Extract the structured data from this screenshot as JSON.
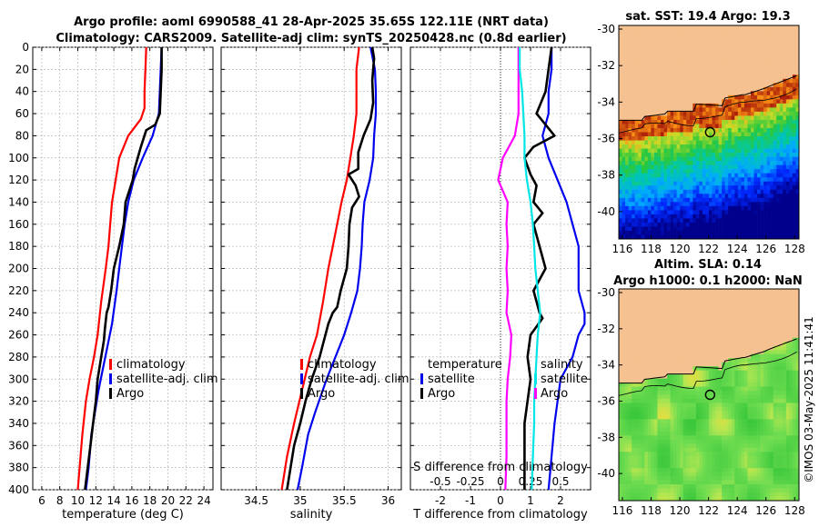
{
  "titles": {
    "line1": "Argo profile: aoml 6990588_41 28-Apr-2025 35.65S 122.11E (NRT data)",
    "line2": "Climatology: CARS2009. Satellite-adj clim: synTS_20250428.nc (0.8d earlier)"
  },
  "credit": "©IMOS 03-May-2025 11:41:41",
  "colors": {
    "climatology": "#ff0000",
    "satellite": "#0000ee",
    "argo": "#000000",
    "salinity_satellite": "#ff00ff",
    "salinity_argo": "#00e5e5"
  },
  "maps": [
    {
      "title_lines": [
        "sat. SST: 19.4 Argo: 19.3"
      ],
      "palette": "sst",
      "x_ticks": [
        "116",
        "118",
        "120",
        "122",
        "124",
        "126",
        "128"
      ],
      "y_ticks": [
        "-30",
        "-32",
        "-34",
        "-36",
        "-38",
        "-40"
      ]
    },
    {
      "title_lines": [
        "Altim. SLA: 0.14",
        "Argo h1000: 0.1 h2000: NaN"
      ],
      "palette": "sla",
      "x_ticks": [
        "116",
        "118",
        "120",
        "122",
        "124",
        "126",
        "128"
      ],
      "y_ticks": [
        "-30",
        "-32",
        "-34",
        "-36",
        "-38",
        "-40"
      ]
    }
  ],
  "chart_data": [
    {
      "type": "line",
      "name": "temperature",
      "xlabel": "temperature (deg C)",
      "ylabel": "",
      "xlim": [
        5,
        25
      ],
      "ylim": [
        400,
        0
      ],
      "x_ticks": [
        6,
        8,
        10,
        12,
        14,
        16,
        18,
        20,
        22,
        24
      ],
      "y_ticks": [
        0,
        20,
        40,
        60,
        80,
        100,
        120,
        140,
        160,
        180,
        200,
        220,
        240,
        260,
        280,
        300,
        320,
        340,
        360,
        380,
        400
      ],
      "legend": [
        "climatology",
        "satellite-adj. clim",
        "Argo"
      ],
      "series": [
        {
          "name": "climatology",
          "color_key": "climatology",
          "x": [
            17.6,
            17.5,
            17.4,
            17.4,
            17.0,
            15.6,
            14.6,
            14.2,
            13.8,
            13.6,
            13.4,
            13.1,
            12.6,
            12.2,
            11.8,
            11.3,
            10.9,
            10.5,
            10.2,
            10.0
          ],
          "y": [
            0,
            20,
            40,
            55,
            65,
            80,
            100,
            120,
            140,
            160,
            180,
            200,
            230,
            260,
            280,
            300,
            320,
            350,
            380,
            400
          ]
        },
        {
          "name": "satellite-adj. clim",
          "color_key": "satellite",
          "x": [
            19.3,
            19.2,
            19.1,
            19.0,
            18.3,
            17.2,
            16.2,
            15.6,
            15.2,
            14.9,
            14.6,
            14.3,
            13.8,
            13.3,
            12.8,
            12.3,
            11.9,
            11.5,
            11.2,
            10.9
          ],
          "y": [
            0,
            20,
            40,
            60,
            80,
            100,
            120,
            140,
            160,
            180,
            200,
            220,
            250,
            270,
            290,
            310,
            330,
            350,
            380,
            400
          ]
        },
        {
          "name": "Argo",
          "color_key": "argo",
          "x": [
            19.3,
            19.3,
            19.2,
            19.1,
            18.6,
            17.6,
            17.0,
            16.3,
            16.1,
            15.3,
            15.1,
            14.6,
            14.0,
            13.7,
            13.4,
            13.2,
            13.0,
            12.9,
            12.6,
            12.2,
            12.0,
            11.7,
            11.4,
            11.1,
            10.8
          ],
          "y": [
            0,
            20,
            40,
            60,
            70,
            75,
            90,
            110,
            120,
            140,
            160,
            180,
            200,
            220,
            235,
            240,
            255,
            265,
            280,
            300,
            320,
            340,
            360,
            380,
            400
          ]
        }
      ]
    },
    {
      "type": "line",
      "name": "salinity",
      "xlabel": "salinity",
      "ylabel": "",
      "xlim": [
        34.1,
        36.15
      ],
      "ylim": [
        400,
        0
      ],
      "x_ticks": [
        34.5,
        35,
        35.5,
        36
      ],
      "legend": [
        "climatology",
        "satellite-adj. clim",
        "Argo"
      ],
      "series": [
        {
          "name": "climatology",
          "color_key": "climatology",
          "x": [
            35.67,
            35.64,
            35.64,
            35.64,
            35.61,
            35.57,
            35.53,
            35.47,
            35.42,
            35.37,
            35.32,
            35.26,
            35.19,
            35.11,
            35.05,
            34.99,
            34.93,
            34.85,
            34.79
          ],
          "y": [
            0,
            20,
            40,
            60,
            80,
            100,
            120,
            140,
            160,
            180,
            200,
            230,
            260,
            280,
            300,
            320,
            340,
            370,
            400
          ]
        },
        {
          "name": "satellite-adj. clim",
          "color_key": "satellite",
          "x": [
            35.8,
            35.85,
            35.86,
            35.86,
            35.84,
            35.83,
            35.79,
            35.73,
            35.71,
            35.7,
            35.68,
            35.65,
            35.58,
            35.5,
            35.4,
            35.3,
            35.17,
            35.09,
            35.02,
            34.97
          ],
          "y": [
            0,
            20,
            40,
            60,
            80,
            100,
            120,
            140,
            160,
            180,
            200,
            220,
            240,
            260,
            280,
            300,
            330,
            350,
            380,
            400
          ]
        },
        {
          "name": "Argo",
          "color_key": "argo",
          "x": [
            35.82,
            35.84,
            35.82,
            35.83,
            35.81,
            35.8,
            35.72,
            35.66,
            35.66,
            35.55,
            35.63,
            35.67,
            35.59,
            35.56,
            35.55,
            35.53,
            35.46,
            35.42,
            35.37,
            35.32,
            35.22,
            35.13,
            35.06,
            35.0,
            34.93,
            34.89,
            34.85
          ],
          "y": [
            0,
            10,
            30,
            50,
            60,
            65,
            80,
            95,
            110,
            115,
            125,
            135,
            145,
            160,
            180,
            200,
            220,
            235,
            240,
            250,
            280,
            300,
            320,
            340,
            360,
            380,
            400
          ]
        }
      ]
    },
    {
      "type": "line",
      "name": "differences",
      "xlabel": "T difference from climatology",
      "xlabel_top": "S difference from climatology",
      "xlim": [
        -3,
        3
      ],
      "ylim": [
        400,
        0
      ],
      "x_ticks": [
        -2,
        -1,
        0,
        1,
        2
      ],
      "x_tick_labels": [
        "-2",
        "-1",
        "0",
        "1",
        "2"
      ],
      "s_ticks": [
        -0.5,
        -0.25,
        0,
        0.25,
        0.5
      ],
      "s_tick_labels": [
        "-0.5",
        "-0.25",
        "0",
        "0.25",
        "0.5"
      ],
      "s_scale": 4,
      "legend_left": [
        "temperature",
        "satellite",
        "Argo"
      ],
      "legend_right": [
        "salinity",
        "satellite",
        "Argo"
      ],
      "series": [
        {
          "name": "T satellite",
          "color_key": "satellite",
          "x": [
            1.7,
            1.7,
            1.6,
            1.6,
            1.4,
            1.6,
            1.9,
            2.2,
            2.4,
            2.6,
            2.6,
            2.6,
            2.8,
            2.8,
            2.6,
            2.4,
            2.0,
            1.9,
            1.8,
            1.7,
            1.6
          ],
          "y": [
            0,
            20,
            40,
            60,
            80,
            100,
            120,
            140,
            160,
            180,
            200,
            220,
            240,
            250,
            260,
            280,
            300,
            320,
            340,
            370,
            400
          ]
        },
        {
          "name": "T Argo",
          "color_key": "argo",
          "x": [
            1.7,
            1.6,
            1.5,
            1.2,
            1.5,
            1.8,
            1.1,
            0.8,
            1.0,
            1.2,
            1.1,
            1.4,
            1.1,
            1.3,
            1.5,
            1.3,
            1.1,
            1.2,
            1.3,
            1.4,
            1.0,
            0.9,
            1.0,
            0.9,
            0.8,
            0.8,
            0.8
          ],
          "y": [
            0,
            20,
            40,
            60,
            70,
            80,
            90,
            100,
            115,
            125,
            140,
            150,
            160,
            180,
            200,
            210,
            220,
            230,
            240,
            245,
            260,
            280,
            300,
            320,
            340,
            370,
            400
          ]
        },
        {
          "name": "S satellite",
          "color_key": "salinity_satellite",
          "x": [
            0.15,
            0.15,
            0.15,
            0.15,
            0.12,
            0.02,
            -0.02,
            0.06,
            0.05,
            0.06,
            0.05,
            0.06,
            0.05,
            0.09,
            0.08,
            0.06,
            0.05,
            0.05,
            0.05,
            0.04
          ],
          "y": [
            0,
            20,
            40,
            60,
            80,
            100,
            120,
            140,
            160,
            180,
            200,
            220,
            240,
            260,
            280,
            300,
            320,
            340,
            370,
            400
          ]
        },
        {
          "name": "S Argo",
          "color_key": "salinity_argo",
          "x": [
            0.16,
            0.16,
            0.18,
            0.19,
            0.2,
            0.2,
            0.22,
            0.25,
            0.27,
            0.28,
            0.29,
            0.31,
            0.33,
            0.31,
            0.3,
            0.29,
            0.28,
            0.28,
            0.27,
            0.26
          ],
          "y": [
            0,
            20,
            40,
            60,
            80,
            100,
            120,
            140,
            160,
            180,
            200,
            220,
            240,
            260,
            280,
            300,
            320,
            340,
            370,
            400
          ]
        }
      ]
    }
  ]
}
